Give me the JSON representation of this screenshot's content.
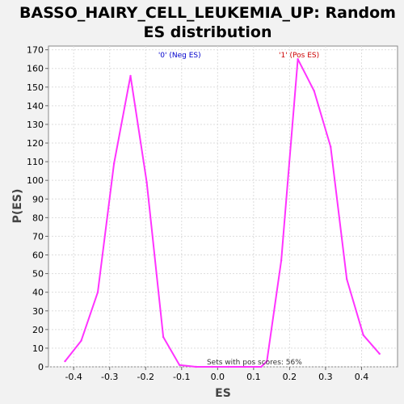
{
  "chart_data": {
    "type": "line",
    "title_lines": [
      "BASSO_HAIRY_CELL_LEUKEMIA_UP: Random",
      "ES distribution"
    ],
    "xlabel": "ES",
    "ylabel": "P(ES)",
    "xlim": [
      -0.47,
      0.5
    ],
    "ylim": [
      0,
      172
    ],
    "xticks": [
      -0.4,
      -0.3,
      -0.2,
      -0.1,
      0.0,
      0.1,
      0.2,
      0.3,
      0.4
    ],
    "xtick_labels": [
      "-0.4",
      "-0.3",
      "-0.2",
      "-0.1",
      "0.0",
      "0.1",
      "0.2",
      "0.3",
      "0.4"
    ],
    "yticks": [
      0,
      10,
      20,
      30,
      40,
      50,
      60,
      70,
      80,
      90,
      100,
      110,
      120,
      130,
      140,
      150,
      160,
      170
    ],
    "ytick_labels": [
      "0",
      "10",
      "20",
      "30",
      "40",
      "50",
      "60",
      "70",
      "80",
      "90",
      "100",
      "110",
      "120",
      "130",
      "140",
      "150",
      "160",
      "170"
    ],
    "grid": true,
    "series": [
      {
        "color": "#ff33ff",
        "points": [
          [
            -0.424,
            3
          ],
          [
            -0.379,
            14
          ],
          [
            -0.333,
            40
          ],
          [
            -0.288,
            109
          ],
          [
            -0.242,
            156
          ],
          [
            -0.197,
            99
          ],
          [
            -0.151,
            16
          ],
          [
            -0.106,
            1
          ],
          [
            -0.06,
            0
          ],
          [
            -0.015,
            0
          ],
          [
            0.03,
            0
          ],
          [
            0.076,
            0
          ],
          [
            0.121,
            0
          ],
          [
            0.137,
            3
          ],
          [
            0.177,
            57
          ],
          [
            0.223,
            165
          ],
          [
            0.268,
            148
          ],
          [
            0.314,
            118
          ],
          [
            0.359,
            47
          ],
          [
            0.405,
            17
          ],
          [
            0.45,
            7
          ]
        ]
      }
    ],
    "annotations": [
      {
        "text": "'0' (Neg ES)",
        "x": -0.165,
        "y": 165,
        "color": "#0000cc"
      },
      {
        "text": "'1' (Pos ES)",
        "x": 0.17,
        "y": 165,
        "color": "#cc0000"
      },
      {
        "text": "Sets with pos scores: 56%",
        "x": -0.03,
        "y": 0.5,
        "color": "#333333"
      }
    ]
  }
}
